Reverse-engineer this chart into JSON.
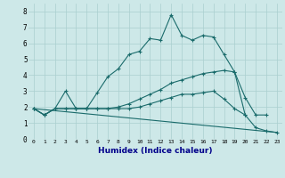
{
  "xlabel": "Humidex (Indice chaleur)",
  "ylabel": "",
  "background_color": "#cde8e8",
  "grid_color": "#aacfcf",
  "line_color": "#1a6b6b",
  "xlim": [
    -0.5,
    23.5
  ],
  "ylim": [
    0,
    8.5
  ],
  "xticks": [
    0,
    1,
    2,
    3,
    4,
    5,
    6,
    7,
    8,
    9,
    10,
    11,
    12,
    13,
    14,
    15,
    16,
    17,
    18,
    19,
    20,
    21,
    22,
    23
  ],
  "yticks": [
    0,
    1,
    2,
    3,
    4,
    5,
    6,
    7,
    8
  ],
  "line1_x": [
    0,
    1,
    2,
    3,
    4,
    5,
    6,
    7,
    8,
    9,
    10,
    11,
    12,
    13,
    14,
    15,
    16,
    17,
    18,
    19,
    20,
    21,
    22,
    23
  ],
  "line1_y": [
    1.9,
    1.5,
    1.9,
    3.0,
    1.9,
    1.9,
    2.9,
    3.9,
    4.4,
    5.3,
    5.5,
    6.3,
    6.2,
    7.8,
    6.5,
    6.2,
    6.5,
    6.4,
    5.3,
    4.2,
    1.5,
    0.7,
    0.5,
    0.4
  ],
  "line2_x": [
    0,
    1,
    2,
    3,
    4,
    5,
    6,
    7,
    8,
    9,
    10,
    11,
    12,
    13,
    14,
    15,
    16,
    17,
    18,
    19,
    20,
    21,
    22
  ],
  "line2_y": [
    1.9,
    1.5,
    1.9,
    1.9,
    1.9,
    1.9,
    1.9,
    1.9,
    2.0,
    2.2,
    2.5,
    2.8,
    3.1,
    3.5,
    3.7,
    3.9,
    4.1,
    4.2,
    4.3,
    4.2,
    2.6,
    1.5,
    1.5
  ],
  "line3_x": [
    0,
    1,
    2,
    3,
    4,
    5,
    6,
    7,
    8,
    9,
    10,
    11,
    12,
    13,
    14,
    15,
    16,
    17,
    18,
    19,
    20
  ],
  "line3_y": [
    1.9,
    1.5,
    1.9,
    1.9,
    1.9,
    1.9,
    1.9,
    1.9,
    1.9,
    1.9,
    2.0,
    2.2,
    2.4,
    2.6,
    2.8,
    2.8,
    2.9,
    3.0,
    2.5,
    1.9,
    1.5
  ],
  "line4_x": [
    0,
    23
  ],
  "line4_y": [
    1.9,
    0.4
  ]
}
